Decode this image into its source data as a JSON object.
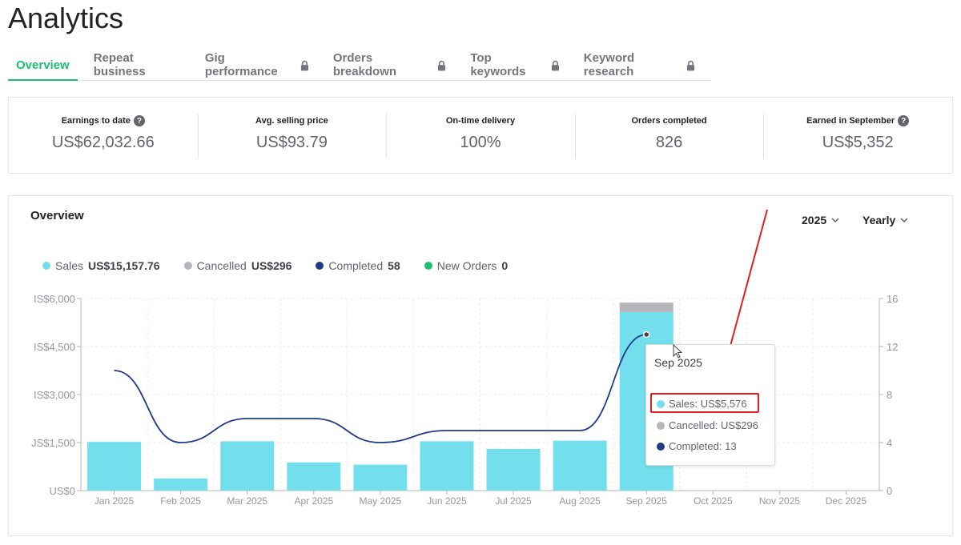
{
  "page": {
    "title": "Analytics"
  },
  "tabs": [
    {
      "label": "Overview",
      "active": true,
      "locked": false
    },
    {
      "label": "Repeat business",
      "active": false,
      "locked": false
    },
    {
      "label": "Gig performance",
      "active": false,
      "locked": true
    },
    {
      "label": "Orders breakdown",
      "active": false,
      "locked": true
    },
    {
      "label": "Top keywords",
      "active": false,
      "locked": true
    },
    {
      "label": "Keyword research",
      "active": false,
      "locked": true
    }
  ],
  "stats": [
    {
      "label": "Earnings to date",
      "value": "US$62,032.66",
      "help": "?"
    },
    {
      "label": "Avg. selling price",
      "value": "US$93.79"
    },
    {
      "label": "On-time delivery",
      "value": "100%"
    },
    {
      "label": "Orders completed",
      "value": "826"
    },
    {
      "label": "Earned in September",
      "value": "US$5,352",
      "help": "?"
    }
  ],
  "overview": {
    "title": "Overview",
    "year_dropdown": "2025",
    "period_dropdown": "Yearly"
  },
  "legend": [
    {
      "name": "Sales",
      "value": "US$15,157.76",
      "color": "#74dfec"
    },
    {
      "name": "Cancelled",
      "value": "US$296",
      "color": "#b5b6ba"
    },
    {
      "name": "Completed",
      "value": "58",
      "color": "#1e3a8a"
    },
    {
      "name": "New Orders",
      "value": "0",
      "color": "#1dbf73"
    }
  ],
  "tooltip": {
    "title": "Sep 2025",
    "sales": "Sales: US$5,576",
    "cancelled": "Cancelled: US$296",
    "completed": "Completed: 13"
  },
  "chart_data": {
    "type": "bar",
    "categories": [
      "Jan 2025",
      "Feb 2025",
      "Mar 2025",
      "Apr 2025",
      "May 2025",
      "Jun 2025",
      "Jul 2025",
      "Aug 2025",
      "Sep 2025",
      "Oct 2025",
      "Nov 2025",
      "Dec 2025"
    ],
    "series": [
      {
        "name": "Sales",
        "type": "bar",
        "axis": "left",
        "color": "#74dfec",
        "values": [
          1520,
          380,
          1540,
          880,
          810,
          1540,
          1300,
          1560,
          5576,
          0,
          0,
          0
        ]
      },
      {
        "name": "Cancelled",
        "type": "bar",
        "stacked_on": "Sales",
        "axis": "left",
        "color": "#b5b6ba",
        "values": [
          0,
          0,
          0,
          0,
          0,
          0,
          0,
          0,
          296,
          0,
          0,
          0
        ]
      },
      {
        "name": "Completed",
        "type": "line",
        "axis": "right",
        "color": "#1e3a8a",
        "values": [
          10,
          4,
          6,
          6,
          4,
          5,
          5,
          5,
          13,
          null,
          null,
          null
        ]
      }
    ],
    "y_left": {
      "ticks": [
        "IS$6,000",
        "IS$4,500",
        "IS$3,000",
        "JS$1,500",
        "US$0"
      ],
      "min": 0,
      "max": 6000
    },
    "y_right": {
      "ticks": [
        "16",
        "12",
        "8",
        "4",
        "0"
      ],
      "min": 0,
      "max": 16
    },
    "grid": true
  }
}
